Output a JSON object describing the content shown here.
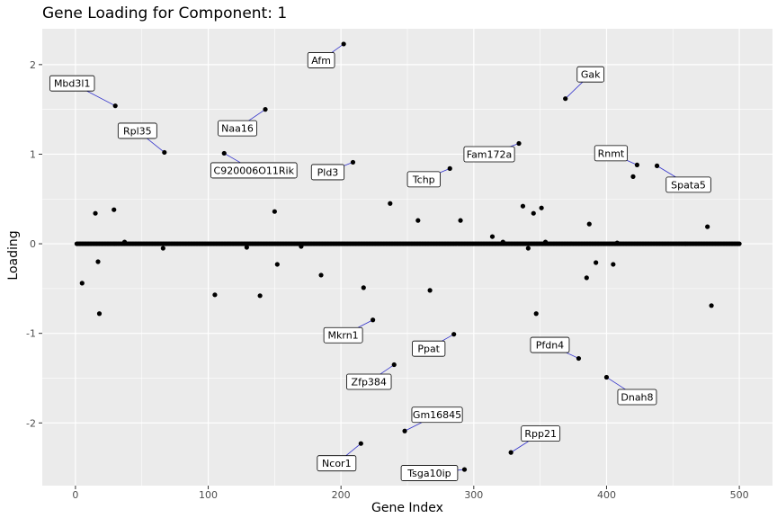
{
  "chart_data": {
    "type": "scatter",
    "title": "Gene Loading for Component: 1",
    "xlabel": "Gene Index",
    "ylabel": "Loading",
    "xlim": [
      -25,
      525
    ],
    "ylim": [
      -2.7,
      2.4
    ],
    "x_ticks": [
      0,
      100,
      200,
      300,
      400,
      500
    ],
    "x_tick_labels": [
      "0",
      "100",
      "200",
      "300",
      "400",
      "500"
    ],
    "y_ticks": [
      -2,
      -1,
      0,
      1,
      2
    ],
    "y_tick_labels": [
      "-2",
      "-1",
      "0",
      "1",
      "2"
    ],
    "grid": true,
    "background": "#ebebeb",
    "grid_color": "#ffffff",
    "point_color": "#000000",
    "connector_color": "#3333cc",
    "zero_baseline": {
      "from": 1,
      "to": 500,
      "value": 0
    },
    "points": [
      {
        "x": 5,
        "y": -0.44
      },
      {
        "x": 15,
        "y": 0.34
      },
      {
        "x": 17,
        "y": -0.2
      },
      {
        "x": 18,
        "y": -0.78
      },
      {
        "x": 29,
        "y": 0.38
      },
      {
        "x": 37,
        "y": 0.02
      },
      {
        "x": 66,
        "y": -0.05
      },
      {
        "x": 105,
        "y": -0.57
      },
      {
        "x": 129,
        "y": -0.04
      },
      {
        "x": 139,
        "y": -0.58
      },
      {
        "x": 150,
        "y": 0.36
      },
      {
        "x": 152,
        "y": -0.23
      },
      {
        "x": 170,
        "y": -0.03
      },
      {
        "x": 185,
        "y": -0.35
      },
      {
        "x": 217,
        "y": -0.49
      },
      {
        "x": 237,
        "y": 0.45
      },
      {
        "x": 258,
        "y": 0.26
      },
      {
        "x": 267,
        "y": -0.52
      },
      {
        "x": 290,
        "y": 0.26
      },
      {
        "x": 314,
        "y": 0.08
      },
      {
        "x": 322,
        "y": 0.02
      },
      {
        "x": 337,
        "y": 0.42
      },
      {
        "x": 341,
        "y": -0.05
      },
      {
        "x": 345,
        "y": 0.34
      },
      {
        "x": 347,
        "y": -0.78
      },
      {
        "x": 351,
        "y": 0.4
      },
      {
        "x": 354,
        "y": 0.02
      },
      {
        "x": 385,
        "y": -0.38
      },
      {
        "x": 387,
        "y": 0.22
      },
      {
        "x": 392,
        "y": -0.21
      },
      {
        "x": 405,
        "y": -0.23
      },
      {
        "x": 408,
        "y": 0.01
      },
      {
        "x": 476,
        "y": 0.19
      },
      {
        "x": 479,
        "y": -0.69
      }
    ],
    "labeled_points": [
      {
        "label": "Mbd3l1",
        "x": 30,
        "y": 1.54
      },
      {
        "label": "Rpl35",
        "x": 67,
        "y": 1.02
      },
      {
        "label": "C920006O11Rik",
        "x": 112,
        "y": 1.01
      },
      {
        "label": "Naa16",
        "x": 143,
        "y": 1.5
      },
      {
        "label": "Afm",
        "x": 202,
        "y": 2.23
      },
      {
        "label": "Pld3",
        "x": 209,
        "y": 0.91
      },
      {
        "label": "Tchp",
        "x": 282,
        "y": 0.84
      },
      {
        "label": "Fam172a",
        "x": 334,
        "y": 1.12
      },
      {
        "label": "Gak",
        "x": 369,
        "y": 1.62
      },
      {
        "label": "Rnmt",
        "x": 423,
        "y": 0.88
      },
      {
        "label": "Spata5",
        "x": 438,
        "y": 0.87
      },
      {
        "label": "Mkrn1",
        "x": 224,
        "y": -0.85
      },
      {
        "label": "Ppat",
        "x": 285,
        "y": -1.01
      },
      {
        "label": "Pfdn4",
        "x": 379,
        "y": -1.28
      },
      {
        "label": "Zfp384",
        "x": 240,
        "y": -1.35
      },
      {
        "label": "Dnah8",
        "x": 400,
        "y": -1.49
      },
      {
        "label": "Gm16845",
        "x": 248,
        "y": -2.09
      },
      {
        "label": "Ncor1",
        "x": 215,
        "y": -2.23
      },
      {
        "label": "Rpp21",
        "x": 328,
        "y": -2.33
      },
      {
        "label": "Tsga10ip",
        "x": 293,
        "y": -2.52
      },
      {
        "label": "",
        "x": 420,
        "y": 0.75
      }
    ]
  }
}
